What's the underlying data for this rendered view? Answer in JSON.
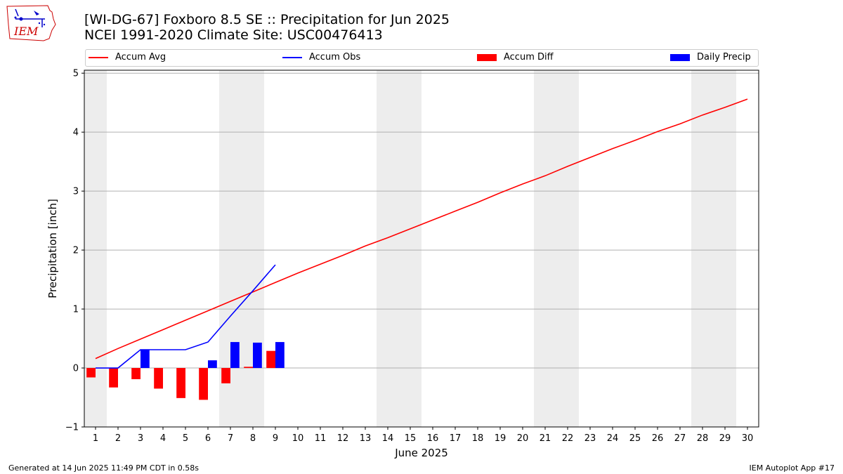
{
  "header": {
    "title_line1": "[WI-DG-67] Foxboro 8.5 SE :: Precipitation for Jun 2025",
    "title_line2": "NCEI 1991-2020 Climate Site: USC00476413"
  },
  "logo": {
    "text": "IEM"
  },
  "footer": {
    "generated": "Generated at 14 Jun 2025 11:49 PM CDT in 0.58s",
    "app": "IEM Autoplot App #17"
  },
  "colors": {
    "avg": "#ff0000",
    "obs": "#0000ff",
    "diff": "#ff0000",
    "daily": "#0000ff",
    "weekend": "#ededed",
    "grid": "#b0b0b0"
  },
  "chart_data": {
    "type": "bar",
    "xlabel": "June 2025",
    "ylabel": "Precipitation [inch]",
    "ylim": [
      -1.0,
      5.05
    ],
    "xlim": [
      0.5,
      30.5
    ],
    "yticks": [
      -1,
      0,
      1,
      2,
      3,
      4,
      5
    ],
    "xticks": [
      1,
      2,
      3,
      4,
      5,
      6,
      7,
      8,
      9,
      10,
      11,
      12,
      13,
      14,
      15,
      16,
      17,
      18,
      19,
      20,
      21,
      22,
      23,
      24,
      25,
      26,
      27,
      28,
      29,
      30
    ],
    "grid": "horizontal",
    "legend_placement": "top",
    "weekend_bands": [
      [
        0.5,
        1.5
      ],
      [
        6.5,
        8.5
      ],
      [
        13.5,
        15.5
      ],
      [
        20.5,
        22.5
      ],
      [
        27.5,
        29.5
      ]
    ],
    "legend": [
      "Accum Avg",
      "Accum Obs",
      "Accum Diff",
      "Daily Precip"
    ],
    "series": [
      {
        "name": "Accum Avg",
        "kind": "line",
        "x": [
          1,
          2,
          3,
          4,
          5,
          6,
          7,
          8,
          9,
          10,
          11,
          12,
          13,
          14,
          15,
          16,
          17,
          18,
          19,
          20,
          21,
          22,
          23,
          24,
          25,
          26,
          27,
          28,
          29,
          30
        ],
        "values": [
          0.16,
          0.33,
          0.49,
          0.65,
          0.81,
          0.97,
          1.13,
          1.29,
          1.45,
          1.61,
          1.76,
          1.91,
          2.07,
          2.21,
          2.36,
          2.51,
          2.66,
          2.81,
          2.97,
          3.12,
          3.26,
          3.42,
          3.57,
          3.72,
          3.86,
          4.01,
          4.14,
          4.29,
          4.42,
          4.56
        ]
      },
      {
        "name": "Accum Obs",
        "kind": "line",
        "x": [
          1,
          2,
          3,
          4,
          5,
          6,
          7,
          8,
          9
        ],
        "values": [
          0.0,
          0.0,
          0.31,
          0.31,
          0.31,
          0.44,
          0.88,
          1.31,
          1.75
        ]
      },
      {
        "name": "Accum Diff",
        "kind": "bar",
        "x": [
          1,
          2,
          3,
          4,
          5,
          6,
          7,
          8,
          9
        ],
        "values": [
          -0.16,
          -0.33,
          -0.19,
          -0.35,
          -0.51,
          -0.54,
          -0.26,
          0.02,
          0.29
        ]
      },
      {
        "name": "Daily Precip",
        "kind": "bar",
        "x": [
          1,
          2,
          3,
          4,
          5,
          6,
          7,
          8,
          9
        ],
        "values": [
          0.0,
          0.0,
          0.31,
          0.0,
          0.0,
          0.13,
          0.44,
          0.43,
          0.44
        ]
      }
    ]
  }
}
